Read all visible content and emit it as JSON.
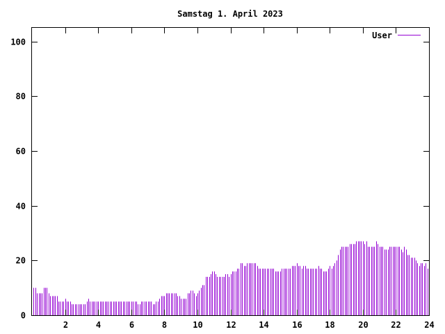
{
  "chart_data": {
    "type": "bar",
    "title": "Samstag 1. April 2023",
    "xlabel": "",
    "ylabel": "",
    "xlim": [
      0,
      24
    ],
    "ylim": [
      0,
      105
    ],
    "x_ticks": [
      2,
      4,
      6,
      8,
      10,
      12,
      14,
      16,
      18,
      20,
      22,
      24
    ],
    "y_ticks": [
      0,
      20,
      40,
      60,
      80,
      100
    ],
    "grid": false,
    "legend_position": "top-right",
    "series": [
      {
        "name": "User",
        "color": "#9400d3",
        "bar_width_hours": 0.1,
        "points": [
          [
            0.1,
            10
          ],
          [
            0.2,
            10
          ],
          [
            0.3,
            8
          ],
          [
            0.4,
            8
          ],
          [
            0.5,
            8
          ],
          [
            0.6,
            8
          ],
          [
            0.7,
            10
          ],
          [
            0.8,
            10
          ],
          [
            0.9,
            10
          ],
          [
            1.0,
            8
          ],
          [
            1.1,
            7
          ],
          [
            1.2,
            7
          ],
          [
            1.3,
            7
          ],
          [
            1.4,
            7
          ],
          [
            1.5,
            7
          ],
          [
            1.6,
            5
          ],
          [
            1.7,
            5
          ],
          [
            1.8,
            5
          ],
          [
            1.9,
            5
          ],
          [
            2.0,
            6
          ],
          [
            2.1,
            5
          ],
          [
            2.2,
            5
          ],
          [
            2.3,
            5
          ],
          [
            2.4,
            4
          ],
          [
            2.5,
            4
          ],
          [
            2.6,
            4
          ],
          [
            2.7,
            4
          ],
          [
            2.8,
            4
          ],
          [
            2.9,
            4
          ],
          [
            3.0,
            4
          ],
          [
            3.1,
            4
          ],
          [
            3.2,
            4
          ],
          [
            3.3,
            5
          ],
          [
            3.4,
            6
          ],
          [
            3.5,
            5
          ],
          [
            3.6,
            5
          ],
          [
            3.7,
            5
          ],
          [
            3.8,
            5
          ],
          [
            3.9,
            5
          ],
          [
            4.0,
            5
          ],
          [
            4.1,
            5
          ],
          [
            4.2,
            5
          ],
          [
            4.3,
            5
          ],
          [
            4.4,
            5
          ],
          [
            4.5,
            5
          ],
          [
            4.6,
            5
          ],
          [
            4.7,
            5
          ],
          [
            4.8,
            5
          ],
          [
            4.9,
            5
          ],
          [
            5.0,
            5
          ],
          [
            5.1,
            5
          ],
          [
            5.2,
            5
          ],
          [
            5.3,
            5
          ],
          [
            5.4,
            5
          ],
          [
            5.5,
            5
          ],
          [
            5.6,
            5
          ],
          [
            5.7,
            5
          ],
          [
            5.8,
            5
          ],
          [
            5.9,
            5
          ],
          [
            6.0,
            5
          ],
          [
            6.1,
            5
          ],
          [
            6.2,
            5
          ],
          [
            6.3,
            5
          ],
          [
            6.4,
            4
          ],
          [
            6.5,
            4
          ],
          [
            6.6,
            5
          ],
          [
            6.7,
            5
          ],
          [
            6.8,
            5
          ],
          [
            6.9,
            5
          ],
          [
            7.0,
            5
          ],
          [
            7.1,
            5
          ],
          [
            7.2,
            5
          ],
          [
            7.3,
            4
          ],
          [
            7.4,
            4
          ],
          [
            7.5,
            5
          ],
          [
            7.6,
            5
          ],
          [
            7.7,
            6
          ],
          [
            7.8,
            7
          ],
          [
            7.9,
            7
          ],
          [
            8.0,
            7
          ],
          [
            8.1,
            8
          ],
          [
            8.2,
            8
          ],
          [
            8.3,
            8
          ],
          [
            8.4,
            8
          ],
          [
            8.5,
            8
          ],
          [
            8.6,
            8
          ],
          [
            8.7,
            8
          ],
          [
            8.8,
            7
          ],
          [
            8.9,
            7
          ],
          [
            9.0,
            6
          ],
          [
            9.1,
            6
          ],
          [
            9.2,
            6
          ],
          [
            9.3,
            6
          ],
          [
            9.4,
            8
          ],
          [
            9.5,
            8
          ],
          [
            9.6,
            9
          ],
          [
            9.7,
            9
          ],
          [
            9.8,
            8
          ],
          [
            9.9,
            7
          ],
          [
            10.0,
            8
          ],
          [
            10.1,
            9
          ],
          [
            10.2,
            10
          ],
          [
            10.3,
            11
          ],
          [
            10.4,
            11
          ],
          [
            10.5,
            14
          ],
          [
            10.6,
            14
          ],
          [
            10.7,
            14
          ],
          [
            10.8,
            15
          ],
          [
            10.9,
            16
          ],
          [
            11.0,
            16
          ],
          [
            11.1,
            15
          ],
          [
            11.2,
            14
          ],
          [
            11.3,
            14
          ],
          [
            11.4,
            14
          ],
          [
            11.5,
            14
          ],
          [
            11.6,
            14
          ],
          [
            11.7,
            15
          ],
          [
            11.8,
            15
          ],
          [
            11.9,
            14
          ],
          [
            12.0,
            15
          ],
          [
            12.1,
            16
          ],
          [
            12.2,
            16
          ],
          [
            12.3,
            16
          ],
          [
            12.4,
            17
          ],
          [
            12.5,
            17
          ],
          [
            12.6,
            19
          ],
          [
            12.7,
            19
          ],
          [
            12.8,
            18
          ],
          [
            12.9,
            18
          ],
          [
            13.0,
            19
          ],
          [
            13.1,
            19
          ],
          [
            13.2,
            19
          ],
          [
            13.3,
            19
          ],
          [
            13.4,
            19
          ],
          [
            13.5,
            19
          ],
          [
            13.6,
            18
          ],
          [
            13.7,
            17
          ],
          [
            13.8,
            17
          ],
          [
            13.9,
            17
          ],
          [
            14.0,
            17
          ],
          [
            14.1,
            17
          ],
          [
            14.2,
            17
          ],
          [
            14.3,
            17
          ],
          [
            14.4,
            17
          ],
          [
            14.5,
            17
          ],
          [
            14.6,
            17
          ],
          [
            14.7,
            16
          ],
          [
            14.8,
            16
          ],
          [
            14.9,
            16
          ],
          [
            15.0,
            16
          ],
          [
            15.1,
            17
          ],
          [
            15.2,
            17
          ],
          [
            15.3,
            17
          ],
          [
            15.4,
            17
          ],
          [
            15.5,
            17
          ],
          [
            15.6,
            17
          ],
          [
            15.7,
            18
          ],
          [
            15.8,
            18
          ],
          [
            15.9,
            18
          ],
          [
            16.0,
            19
          ],
          [
            16.1,
            18
          ],
          [
            16.2,
            18
          ],
          [
            16.3,
            17
          ],
          [
            16.4,
            18
          ],
          [
            16.5,
            18
          ],
          [
            16.6,
            17
          ],
          [
            16.7,
            17
          ],
          [
            16.8,
            17
          ],
          [
            16.9,
            17
          ],
          [
            17.0,
            17
          ],
          [
            17.1,
            17
          ],
          [
            17.2,
            17
          ],
          [
            17.3,
            18
          ],
          [
            17.4,
            17
          ],
          [
            17.5,
            17
          ],
          [
            17.6,
            16
          ],
          [
            17.7,
            16
          ],
          [
            17.8,
            16
          ],
          [
            17.9,
            17
          ],
          [
            18.0,
            18
          ],
          [
            18.1,
            17
          ],
          [
            18.2,
            18
          ],
          [
            18.3,
            19
          ],
          [
            18.4,
            20
          ],
          [
            18.5,
            22
          ],
          [
            18.6,
            24
          ],
          [
            18.7,
            25
          ],
          [
            18.8,
            25
          ],
          [
            18.9,
            25
          ],
          [
            19.0,
            25
          ],
          [
            19.1,
            25
          ],
          [
            19.2,
            26
          ],
          [
            19.3,
            26
          ],
          [
            19.4,
            26
          ],
          [
            19.5,
            26
          ],
          [
            19.6,
            27
          ],
          [
            19.7,
            27
          ],
          [
            19.8,
            27
          ],
          [
            19.9,
            27
          ],
          [
            20.0,
            27
          ],
          [
            20.1,
            26
          ],
          [
            20.2,
            27
          ],
          [
            20.3,
            25
          ],
          [
            20.4,
            25
          ],
          [
            20.5,
            25
          ],
          [
            20.6,
            25
          ],
          [
            20.7,
            25
          ],
          [
            20.8,
            27
          ],
          [
            20.9,
            26
          ],
          [
            21.0,
            25
          ],
          [
            21.1,
            25
          ],
          [
            21.2,
            25
          ],
          [
            21.3,
            24
          ],
          [
            21.4,
            24
          ],
          [
            21.5,
            24
          ],
          [
            21.6,
            25
          ],
          [
            21.7,
            25
          ],
          [
            21.8,
            25
          ],
          [
            21.9,
            25
          ],
          [
            22.0,
            25
          ],
          [
            22.1,
            25
          ],
          [
            22.2,
            25
          ],
          [
            22.3,
            24
          ],
          [
            22.4,
            23
          ],
          [
            22.5,
            25
          ],
          [
            22.6,
            24
          ],
          [
            22.7,
            22
          ],
          [
            22.8,
            22
          ],
          [
            22.9,
            21
          ],
          [
            23.0,
            21
          ],
          [
            23.1,
            21
          ],
          [
            23.2,
            20
          ],
          [
            23.3,
            19
          ],
          [
            23.4,
            18
          ],
          [
            23.5,
            19
          ],
          [
            23.6,
            19
          ],
          [
            23.7,
            18
          ],
          [
            23.8,
            19
          ],
          [
            23.9,
            17
          ]
        ]
      }
    ]
  }
}
